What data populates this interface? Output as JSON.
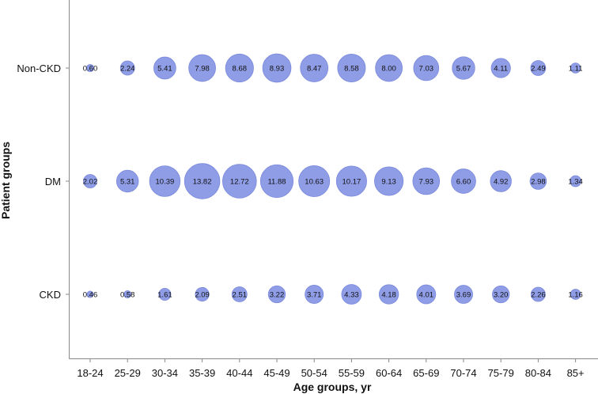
{
  "chart_data": {
    "type": "scatter",
    "subtype": "bubble",
    "xlabel": "Age groups, yr",
    "ylabel": "Patient groups",
    "categories": [
      "18-24",
      "25-29",
      "30-34",
      "35-39",
      "40-44",
      "45-49",
      "50-54",
      "55-59",
      "60-64",
      "65-69",
      "70-74",
      "75-79",
      "80-84",
      "85+"
    ],
    "groups": [
      "Non-CKD",
      "DM",
      "CKD"
    ],
    "series": [
      {
        "name": "Non-CKD",
        "values": [
          0.6,
          2.24,
          5.41,
          7.98,
          8.68,
          8.93,
          8.47,
          8.58,
          8.0,
          7.03,
          5.67,
          4.11,
          2.49,
          1.11
        ],
        "labels": [
          "0.60",
          "2.24",
          "5.41",
          "7.98",
          "8.68",
          "8.93",
          "8.47",
          "8.58",
          "8.00",
          "7.03",
          "5.67",
          "4.11",
          "2.49",
          "1.11"
        ]
      },
      {
        "name": "DM",
        "values": [
          2.02,
          5.31,
          10.39,
          13.82,
          12.72,
          11.88,
          10.63,
          10.17,
          9.13,
          7.93,
          6.6,
          4.92,
          2.98,
          1.34
        ],
        "labels": [
          "2.02",
          "5.31",
          "10.39",
          "13.82",
          "12.72",
          "11.88",
          "10.63",
          "10.17",
          "9.13",
          "7.93",
          "6.60",
          "4.92",
          "2.98",
          "1.34"
        ]
      },
      {
        "name": "CKD",
        "values": [
          0.46,
          0.58,
          1.61,
          2.09,
          2.51,
          3.22,
          3.71,
          4.33,
          4.18,
          4.01,
          3.69,
          3.2,
          2.26,
          1.16
        ],
        "labels": [
          "0.46",
          "0.58",
          "1.61",
          "2.09",
          "2.51",
          "3.22",
          "3.71",
          "4.33",
          "4.18",
          "4.01",
          "3.69",
          "3.20",
          "2.26",
          "1.16"
        ]
      }
    ],
    "bubble_color": "#8f9de6",
    "bubble_stroke": "#7a89dc",
    "grid": false,
    "legend": "none"
  }
}
